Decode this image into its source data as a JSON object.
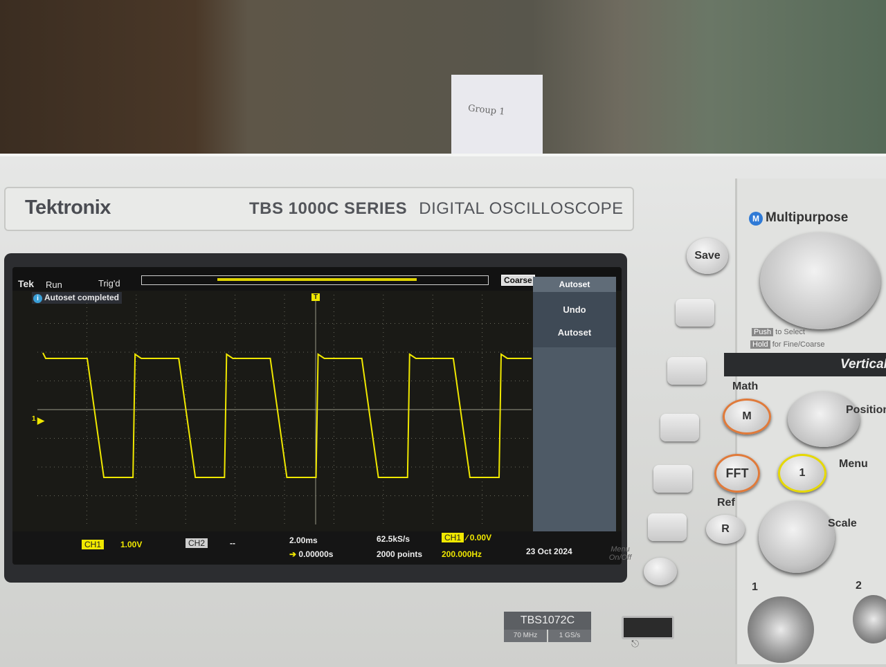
{
  "brand": "Tektronix",
  "model_line": {
    "bold": "TBS 1000C SERIES",
    "rest": "DIGITAL OSCILLOSCOPE"
  },
  "background_note": "Group 1",
  "screen": {
    "status": {
      "logo": "Tek",
      "mode": "Run",
      "trigger": "Trig'd",
      "coarse": "Coarse"
    },
    "message": "Autoset completed",
    "side_menu": {
      "title": "Autoset",
      "items": [
        "Undo",
        "Autoset"
      ]
    },
    "bottom": {
      "ch1_label": "CH1",
      "ch1_scale": "1.00V",
      "ch2_label": "CH2",
      "ch2_scale": "--",
      "timebase": "2.00ms",
      "position": "0.00000s",
      "sample_rate": "62.5kS/s",
      "record": "2000 points",
      "trig_source": "CH1",
      "trig_level": "0.00V",
      "frequency": "200.000Hz",
      "date": "23 Oct 2024"
    },
    "marker_ch1": "1",
    "trigger_marker": "T"
  },
  "waveform": {
    "type": "square",
    "color": "#f0e800",
    "periods_visible": 5.4
  },
  "controls": {
    "save": "Save",
    "menu_onoff": "Menu On/Off",
    "multipurpose": "Multipurpose",
    "push_hint": "Push",
    "push_rest": "to Select",
    "hold_hint": "Hold",
    "hold_rest": "for Fine/Coarse",
    "vertical": "Vertical",
    "math": "Math",
    "math_btn": "M",
    "fft": "FFT",
    "ref": "Ref",
    "ref_btn": "R",
    "ch1_btn": "1",
    "menu": "Menu",
    "position": "Position",
    "scale": "Scale",
    "input1": "1",
    "input2": "2"
  },
  "model_badge": {
    "name": "TBS1072C",
    "bandwidth": "70 MHz",
    "rate": "1 GS/s"
  },
  "colors": {
    "trace": "#f0e800",
    "screen_bg": "#1a1a16",
    "accent_blue": "#2f7ad6",
    "math_ring": "#e07a3a",
    "ch1_ring": "#e6d800"
  }
}
